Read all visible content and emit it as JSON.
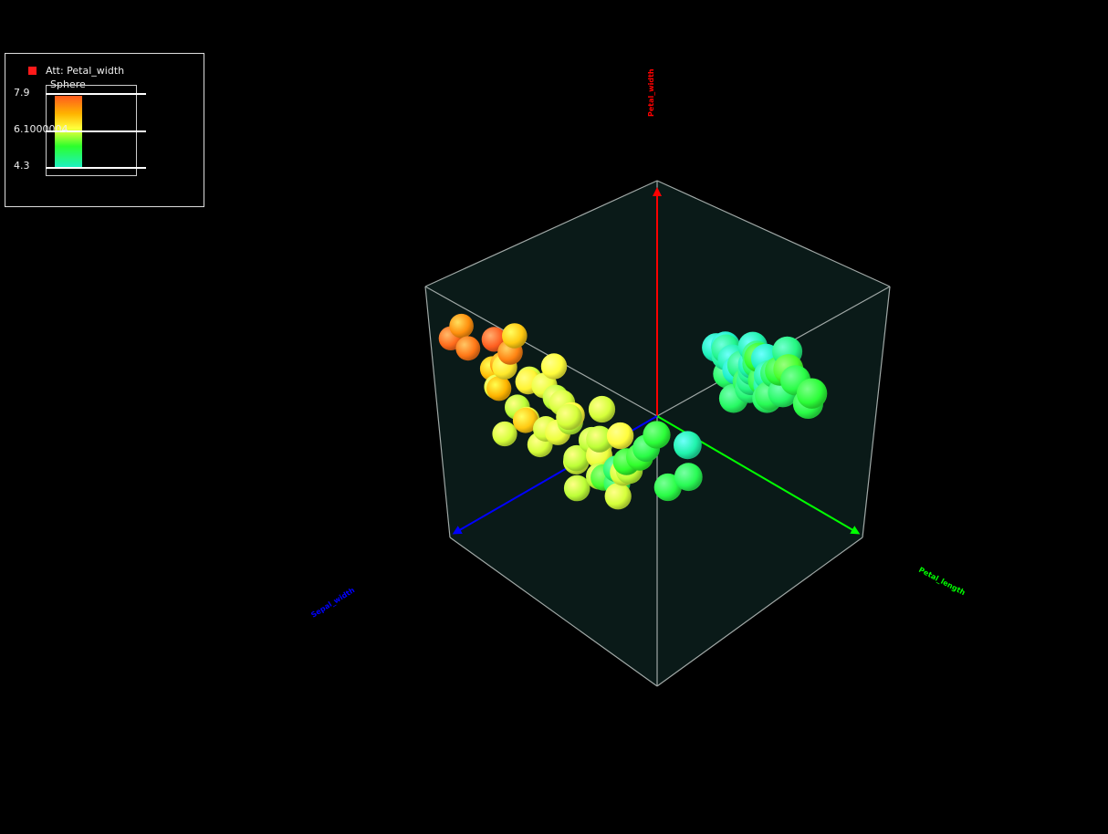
{
  "legend": {
    "attribute_label": "Att: Petal_width",
    "shape_label": "Sphere",
    "max_label": "7.9",
    "mid_label": "6.1000004",
    "min_label": "4.3",
    "swatch_color": "#ff1a1a"
  },
  "axes": {
    "vertical_label": "Petal_width",
    "right_label": "Petal_length",
    "left_label": "Sepal_width",
    "vertical_color": "#ff0000",
    "right_color": "#00ff00",
    "left_color": "#0000ff"
  },
  "chart_data": {
    "type": "scatter",
    "dimensions": 3,
    "color_attribute": "Petal_width",
    "color_range": [
      4.3,
      7.9
    ],
    "box_color": "#0a1a18",
    "point_shape": "sphere",
    "clusters": [
      {
        "name": "",
        "points": [
          [
            0.05,
            0.18,
            0.05,
            7.6
          ],
          [
            0.1,
            0.22,
            0.08,
            7.5
          ],
          [
            0.2,
            0.15,
            0.12,
            7.7
          ],
          [
            0.14,
            0.1,
            0.03,
            7.3
          ],
          [
            0.18,
            0.28,
            0.16,
            7.2
          ],
          [
            0.3,
            0.2,
            0.1,
            7.4
          ],
          [
            0.25,
            0.3,
            0.05,
            6.9
          ],
          [
            0.22,
            0.12,
            0.2,
            6.8
          ],
          [
            0.12,
            0.3,
            0.22,
            6.5
          ],
          [
            0.28,
            0.35,
            0.18,
            6.4
          ],
          [
            0.35,
            0.25,
            0.25,
            6.3
          ],
          [
            0.2,
            0.4,
            0.1,
            6.2
          ],
          [
            0.15,
            0.35,
            0.3,
            6.1
          ],
          [
            0.3,
            0.42,
            0.28,
            6.0
          ],
          [
            0.4,
            0.35,
            0.15,
            6.2
          ],
          [
            0.25,
            0.45,
            0.35,
            6.1
          ],
          [
            0.18,
            0.5,
            0.2,
            6.0
          ],
          [
            0.35,
            0.5,
            0.3,
            6.3
          ],
          [
            0.28,
            0.55,
            0.15,
            6.2
          ],
          [
            0.4,
            0.45,
            0.4,
            6.1
          ],
          [
            0.22,
            0.55,
            0.4,
            6.0
          ],
          [
            0.32,
            0.6,
            0.25,
            6.2
          ],
          [
            0.45,
            0.5,
            0.2,
            6.1
          ],
          [
            0.38,
            0.62,
            0.35,
            6.0
          ],
          [
            0.2,
            0.6,
            0.3,
            6.1
          ],
          [
            0.3,
            0.65,
            0.45,
            6.0
          ],
          [
            0.42,
            0.58,
            0.45,
            6.3
          ],
          [
            0.25,
            0.68,
            0.22,
            6.1
          ],
          [
            0.48,
            0.6,
            0.3,
            6.0
          ],
          [
            0.35,
            0.7,
            0.4,
            6.2
          ],
          [
            0.15,
            0.65,
            0.15,
            6.1
          ],
          [
            0.4,
            0.72,
            0.25,
            6.0
          ],
          [
            0.28,
            0.75,
            0.35,
            6.1
          ],
          [
            0.45,
            0.68,
            0.5,
            5.4
          ],
          [
            0.5,
            0.55,
            0.55,
            5.3
          ],
          [
            0.55,
            0.62,
            0.45,
            5.2
          ],
          [
            0.5,
            0.75,
            0.4,
            6.0
          ],
          [
            0.35,
            0.78,
            0.5,
            6.1
          ],
          [
            0.45,
            0.8,
            0.3,
            6.0
          ],
          [
            0.3,
            0.82,
            0.45,
            5.5
          ],
          [
            0.55,
            0.7,
            0.35,
            5.4
          ],
          [
            0.6,
            0.58,
            0.6,
            4.5
          ],
          [
            0.25,
            0.85,
            0.55,
            5.1
          ],
          [
            0.38,
            0.88,
            0.25,
            6.0
          ],
          [
            0.2,
            0.78,
            0.6,
            5.0
          ],
          [
            0.52,
            0.82,
            0.55,
            5.2
          ],
          [
            0.58,
            0.75,
            0.6,
            5.1
          ],
          [
            0.42,
            0.9,
            0.4,
            6.1
          ],
          [
            0.33,
            0.55,
            0.1,
            6.8
          ],
          [
            0.27,
            0.4,
            0.05,
            7.0
          ]
        ]
      },
      {
        "name": "",
        "points": [
          [
            0.62,
            0.05,
            0.78,
            4.4
          ],
          [
            0.65,
            0.1,
            0.82,
            4.5
          ],
          [
            0.7,
            0.08,
            0.75,
            4.6
          ],
          [
            0.68,
            0.15,
            0.88,
            4.7
          ],
          [
            0.72,
            0.12,
            0.8,
            4.8
          ],
          [
            0.75,
            0.06,
            0.85,
            4.9
          ],
          [
            0.66,
            0.18,
            0.78,
            5.0
          ],
          [
            0.74,
            0.16,
            0.9,
            4.6
          ],
          [
            0.78,
            0.1,
            0.82,
            5.0
          ],
          [
            0.7,
            0.2,
            0.85,
            4.8
          ],
          [
            0.64,
            0.12,
            0.92,
            4.5
          ],
          [
            0.76,
            0.2,
            0.78,
            5.1
          ],
          [
            0.8,
            0.14,
            0.88,
            5.0
          ],
          [
            0.72,
            0.24,
            0.82,
            4.9
          ],
          [
            0.68,
            0.08,
            0.95,
            4.4
          ],
          [
            0.82,
            0.18,
            0.8,
            5.2
          ],
          [
            0.78,
            0.24,
            0.92,
            5.0
          ],
          [
            0.74,
            0.04,
            0.72,
            4.7
          ],
          [
            0.85,
            0.12,
            0.86,
            5.3
          ],
          [
            0.66,
            0.22,
            0.96,
            4.6
          ],
          [
            0.8,
            0.26,
            0.84,
            5.1
          ],
          [
            0.7,
            0.02,
            0.88,
            4.5
          ],
          [
            0.88,
            0.16,
            0.9,
            5.2
          ],
          [
            0.76,
            0.28,
            0.86,
            5.0
          ],
          [
            0.84,
            0.06,
            0.78,
            5.4
          ],
          [
            0.62,
            0.16,
            0.86,
            4.3
          ],
          [
            0.9,
            0.22,
            0.95,
            5.3
          ],
          [
            0.86,
            0.28,
            0.96,
            5.2
          ],
          [
            0.92,
            0.1,
            0.84,
            5.5
          ],
          [
            0.72,
            0.3,
            0.74,
            5.0
          ],
          [
            0.6,
            0.04,
            0.84,
            4.3
          ],
          [
            0.8,
            0.02,
            0.95,
            4.8
          ]
        ]
      }
    ]
  }
}
